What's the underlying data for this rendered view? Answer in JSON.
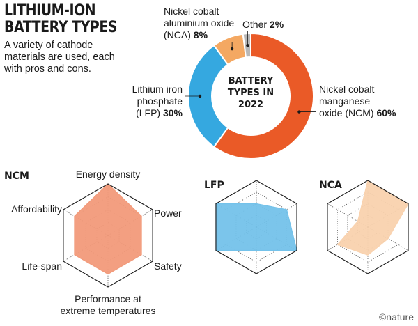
{
  "title": "LITHIUM-ION\nBATTERY TYPES",
  "subtitle": "A variety of cathode\nmaterials are used, each\nwith pros and cons.",
  "credit": "©nature",
  "colors": {
    "ncm": "#ea5a27",
    "lfp": "#35a8e0",
    "nca": "#f4a862",
    "other": "#b8b8b8",
    "ncm_fill": "#f29a7a",
    "lfp_fill": "#74c2ea",
    "nca_fill": "#f9d2ae"
  },
  "chart_data": [
    {
      "type": "pie",
      "title": "BATTERY TYPES IN 2022",
      "center_lines": [
        "BATTERY",
        "TYPES IN",
        "2022"
      ],
      "slices": [
        {
          "name": "Nickel cobalt manganese oxide (NCM)",
          "label_lines": [
            "Nickel cobalt",
            "manganese",
            "oxide (NCM)"
          ],
          "value": 60,
          "value_label": "60%",
          "color": "#ea5a27"
        },
        {
          "name": "Lithium iron phosphate (LFP)",
          "label_lines": [
            "Lithium iron",
            "phosphate",
            "(LFP)"
          ],
          "value": 30,
          "value_label": "30%",
          "color": "#35a8e0"
        },
        {
          "name": "Nickel cobalt aluminium oxide (NCA)",
          "label_lines": [
            "Nickel cobalt",
            "aluminium oxide",
            "(NCA)"
          ],
          "value": 8,
          "value_label": "8%",
          "color": "#f4a862"
        },
        {
          "name": "Other",
          "label_lines": [
            "Other"
          ],
          "value": 2,
          "value_label": "2%",
          "color": "#b8b8b8"
        }
      ]
    },
    {
      "type": "radar",
      "title": "NCM",
      "axes": [
        "Energy density",
        "Power",
        "Safety",
        "Performance at extreme temperatures",
        "Life-span",
        "Affordability"
      ],
      "axis_label_lines": [
        [
          "Energy density"
        ],
        [
          "Power"
        ],
        [
          "Safety"
        ],
        [
          "Performance at",
          "extreme temperatures"
        ],
        [
          "Life-span"
        ],
        [
          "Affordability"
        ]
      ],
      "max": 4,
      "values": [
        4,
        3,
        3,
        3,
        3,
        3
      ],
      "color": "#f29a7a"
    },
    {
      "type": "radar",
      "title": "LFP",
      "axes": [
        "Energy density",
        "Power",
        "Safety",
        "Performance at extreme temperatures",
        "Life-span",
        "Affordability"
      ],
      "max": 4,
      "values": [
        2,
        3,
        4,
        2,
        4,
        4
      ],
      "color": "#74c2ea"
    },
    {
      "type": "radar",
      "title": "NCA",
      "axes": [
        "Energy density",
        "Power",
        "Safety",
        "Performance at extreme temperatures",
        "Life-span",
        "Affordability"
      ],
      "max": 4,
      "values": [
        4,
        4,
        2,
        2.4,
        3,
        1
      ],
      "color": "#f9d2ae"
    }
  ]
}
